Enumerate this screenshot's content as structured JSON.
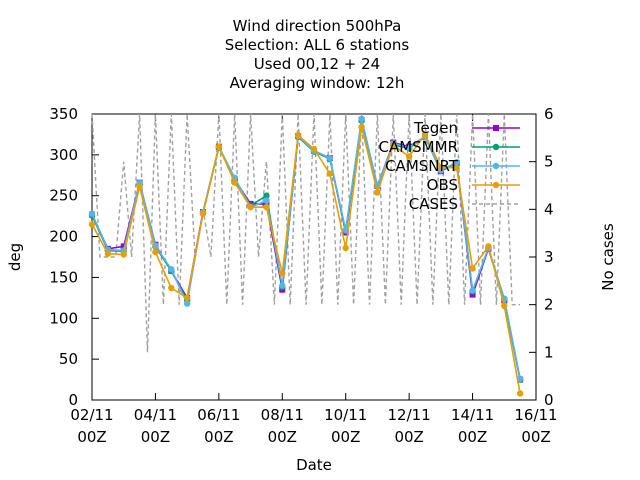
{
  "chart_data": {
    "type": "line",
    "title_lines": [
      "Wind direction 500hPa",
      "Selection: ALL      6 stations",
      "Used  00,12  + 24",
      "Averaging window: 12h"
    ],
    "xlabel": "Date",
    "ylabel": "deg",
    "y2label": "No cases",
    "xlim": [
      0,
      14
    ],
    "ylim": [
      0,
      350
    ],
    "y2lim": [
      0,
      6
    ],
    "x_ticks": [
      {
        "value": 0,
        "line1": "02/11",
        "line2": "00Z"
      },
      {
        "value": 2,
        "line1": "04/11",
        "line2": "00Z"
      },
      {
        "value": 4,
        "line1": "06/11",
        "line2": "00Z"
      },
      {
        "value": 6,
        "line1": "08/11",
        "line2": "00Z"
      },
      {
        "value": 8,
        "line1": "10/11",
        "line2": "00Z"
      },
      {
        "value": 10,
        "line1": "12/11",
        "line2": "00Z"
      },
      {
        "value": 12,
        "line1": "14/11",
        "line2": "00Z"
      },
      {
        "value": 14,
        "line1": "16/11",
        "line2": "00Z"
      }
    ],
    "y_ticks": [
      0,
      50,
      100,
      150,
      200,
      250,
      300,
      350
    ],
    "y2_ticks": [
      0,
      1,
      2,
      3,
      4,
      5,
      6
    ],
    "grid": false,
    "legend_position": "top-right",
    "x_unit_note": "days since 02/11 00Z",
    "series": [
      {
        "name": "Tegen",
        "axis": "y",
        "color": "#9400d3",
        "marker": "square",
        "x": [
          0,
          0.5,
          1,
          1.5,
          2,
          2.5,
          3,
          3.5,
          4,
          4.5,
          5,
          5.5,
          6,
          6.5,
          7,
          7.5,
          8,
          8.5,
          9,
          9.5,
          10,
          10.5,
          11,
          11.5,
          12,
          12.5,
          13,
          13.5
        ],
        "y": [
          227,
          185,
          188,
          266,
          190,
          158,
          125,
          230,
          310,
          270,
          240,
          240,
          135,
          323,
          305,
          296,
          205,
          343,
          262,
          315,
          310,
          322,
          280,
          290,
          129,
          185,
          122,
          25
        ]
      },
      {
        "name": "CAMSMMR",
        "axis": "y",
        "color": "#009e73",
        "marker": "circle",
        "x": [
          0,
          0.5,
          1,
          1.5,
          2,
          2.5,
          3,
          3.5,
          4,
          4.5,
          5,
          5.5,
          6,
          6.5,
          7,
          7.5,
          8,
          8.5,
          9,
          9.5,
          10,
          10.5,
          11,
          11.5,
          12,
          12.5,
          13,
          13.5
        ],
        "y": [
          226,
          183,
          182,
          264,
          188,
          158,
          122,
          229,
          309,
          270,
          238,
          250,
          138,
          322,
          304,
          295,
          207,
          342,
          262,
          312,
          308,
          322,
          281,
          290,
          133,
          186,
          123,
          25
        ]
      },
      {
        "name": "CAMSNRT",
        "axis": "y",
        "color": "#56b4e9",
        "marker": "circle",
        "x": [
          0,
          0.5,
          1,
          1.5,
          2,
          2.5,
          3,
          3.5,
          4,
          4.5,
          5,
          5.5,
          6,
          6.5,
          7,
          7.5,
          8,
          8.5,
          9,
          9.5,
          10,
          10.5,
          11,
          11.5,
          12,
          12.5,
          13,
          13.5
        ],
        "y": [
          228,
          184,
          183,
          266,
          189,
          160,
          118,
          230,
          310,
          272,
          236,
          244,
          140,
          323,
          305,
          296,
          208,
          344,
          262,
          314,
          309,
          322,
          281,
          291,
          134,
          186,
          124,
          26
        ]
      },
      {
        "name": "OBS",
        "axis": "y",
        "color": "#e69f00",
        "marker": "circle",
        "x": [
          0,
          0.5,
          1,
          1.5,
          2,
          2.5,
          3,
          3.5,
          4,
          4.5,
          5,
          5.5,
          6,
          6.5,
          7,
          7.5,
          8,
          8.5,
          9,
          9.5,
          10,
          10.5,
          11,
          11.5,
          12,
          12.5,
          13,
          13.5
        ],
        "y": [
          215,
          179,
          178,
          261,
          181,
          137,
          125,
          228,
          310,
          266,
          236,
          236,
          155,
          324,
          307,
          277,
          186,
          334,
          254,
          312,
          298,
          325,
          285,
          284,
          161,
          188,
          115,
          8
        ]
      },
      {
        "name": "CASES",
        "axis": "y2",
        "color": "#a0a0a0",
        "marker": "none",
        "dashed": true,
        "x": [
          0,
          0.25,
          0.5,
          0.75,
          1,
          1.25,
          1.5,
          1.75,
          2,
          2.25,
          2.5,
          2.75,
          3,
          3.25,
          3.5,
          3.75,
          4,
          4.25,
          4.5,
          4.75,
          5,
          5.25,
          5.5,
          5.75,
          6,
          6.25,
          6.5,
          6.75,
          7,
          7.25,
          7.5,
          7.75,
          8,
          8.25,
          8.5,
          8.75,
          9,
          9.25,
          9.5,
          9.75,
          10,
          10.25,
          10.5,
          10.75,
          11,
          11.25,
          11.5,
          11.75,
          12,
          12.25,
          12.5,
          12.75,
          13,
          13.25,
          13.5
        ],
        "y": [
          6,
          3,
          3,
          3,
          5,
          3,
          6,
          1,
          6,
          2,
          6,
          2,
          6,
          3,
          4,
          3,
          6,
          2,
          6,
          2,
          6,
          3,
          5,
          2,
          6,
          2,
          6,
          2,
          6,
          2,
          6,
          2,
          6,
          2,
          6,
          2,
          6,
          2,
          6,
          2,
          6,
          2,
          6,
          2,
          6,
          2,
          6,
          2,
          6,
          2,
          6,
          2,
          6,
          2,
          2
        ]
      }
    ]
  }
}
